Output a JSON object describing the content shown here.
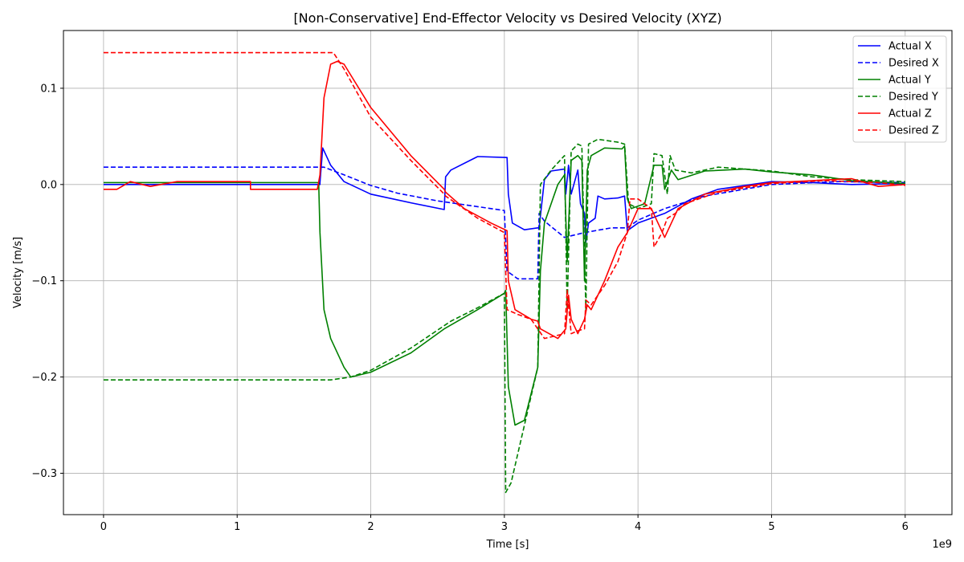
{
  "chart_data": {
    "type": "line",
    "title": "[Non-Conservative] End-Effector Velocity vs Desired Velocity (XYZ)",
    "xlabel": "Time [s]",
    "ylabel": "Velocity [m/s]",
    "x_offset_label": "1e9",
    "xlim": [
      -0.3,
      6.35
    ],
    "ylim": [
      -0.343,
      0.16
    ],
    "x_ticks": [
      0,
      1,
      2,
      3,
      4,
      5,
      6
    ],
    "x_tick_labels": [
      "0",
      "1",
      "2",
      "3",
      "4",
      "5",
      "6"
    ],
    "y_ticks": [
      -0.3,
      -0.2,
      -0.1,
      0.0,
      0.1
    ],
    "y_tick_labels": [
      "−0.3",
      "−0.2",
      "−0.1",
      "0.0",
      "0.1"
    ],
    "grid": true,
    "legend_position": "top-right",
    "series": [
      {
        "name": "Actual X",
        "color": "#0000ff",
        "dash": "solid",
        "points": [
          [
            0,
            0
          ],
          [
            1.62,
            0
          ],
          [
            1.62,
            0.002
          ],
          [
            1.64,
            0.038
          ],
          [
            1.7,
            0.02
          ],
          [
            1.8,
            0.003
          ],
          [
            2.0,
            -0.01
          ],
          [
            2.3,
            -0.019
          ],
          [
            2.55,
            -0.026
          ],
          [
            2.56,
            0.008
          ],
          [
            2.6,
            0.015
          ],
          [
            2.8,
            0.029
          ],
          [
            3.02,
            0.028
          ],
          [
            3.03,
            -0.01
          ],
          [
            3.06,
            -0.04
          ],
          [
            3.15,
            -0.047
          ],
          [
            3.25,
            -0.045
          ],
          [
            3.26,
            -0.045
          ],
          [
            3.3,
            0.005
          ],
          [
            3.35,
            0.014
          ],
          [
            3.45,
            0.016
          ],
          [
            3.46,
            -0.01
          ],
          [
            3.48,
            0.02
          ],
          [
            3.5,
            -0.01
          ],
          [
            3.55,
            0.015
          ],
          [
            3.57,
            -0.02
          ],
          [
            3.6,
            -0.03
          ],
          [
            3.61,
            -0.06
          ],
          [
            3.63,
            -0.04
          ],
          [
            3.68,
            -0.035
          ],
          [
            3.7,
            -0.012
          ],
          [
            3.75,
            -0.015
          ],
          [
            3.85,
            -0.014
          ],
          [
            3.9,
            -0.012
          ],
          [
            3.92,
            -0.048
          ],
          [
            4.0,
            -0.04
          ],
          [
            4.2,
            -0.03
          ],
          [
            4.4,
            -0.015
          ],
          [
            4.6,
            -0.005
          ],
          [
            5.0,
            0.003
          ],
          [
            5.3,
            0.002
          ],
          [
            5.6,
            0.0
          ],
          [
            6.0,
            0.001
          ]
        ]
      },
      {
        "name": "Desired X",
        "color": "#0000ff",
        "dash": "dashed",
        "points": [
          [
            0,
            0.018
          ],
          [
            1.65,
            0.018
          ],
          [
            1.8,
            0.01
          ],
          [
            2.0,
            -0.001
          ],
          [
            2.2,
            -0.009
          ],
          [
            2.5,
            -0.017
          ],
          [
            2.8,
            -0.023
          ],
          [
            3.0,
            -0.027
          ],
          [
            3.02,
            -0.09
          ],
          [
            3.1,
            -0.098
          ],
          [
            3.25,
            -0.098
          ],
          [
            3.26,
            -0.03
          ],
          [
            3.3,
            -0.038
          ],
          [
            3.45,
            -0.055
          ],
          [
            3.6,
            -0.05
          ],
          [
            3.8,
            -0.045
          ],
          [
            3.92,
            -0.045
          ],
          [
            4.0,
            -0.037
          ],
          [
            4.2,
            -0.025
          ],
          [
            4.5,
            -0.012
          ],
          [
            5.0,
            0.0
          ],
          [
            5.5,
            0.003
          ],
          [
            6.0,
            0.002
          ]
        ]
      },
      {
        "name": "Actual Y",
        "color": "#008000",
        "dash": "solid",
        "points": [
          [
            0,
            0.002
          ],
          [
            1.61,
            0.002
          ],
          [
            1.62,
            -0.05
          ],
          [
            1.65,
            -0.13
          ],
          [
            1.7,
            -0.16
          ],
          [
            1.8,
            -0.19
          ],
          [
            1.85,
            -0.2
          ],
          [
            2.0,
            -0.195
          ],
          [
            2.3,
            -0.175
          ],
          [
            2.55,
            -0.15
          ],
          [
            2.8,
            -0.13
          ],
          [
            3.0,
            -0.113
          ],
          [
            3.01,
            -0.11
          ],
          [
            3.03,
            -0.21
          ],
          [
            3.08,
            -0.25
          ],
          [
            3.15,
            -0.245
          ],
          [
            3.25,
            -0.19
          ],
          [
            3.27,
            -0.09
          ],
          [
            3.3,
            -0.04
          ],
          [
            3.4,
            0.0
          ],
          [
            3.45,
            0.01
          ],
          [
            3.47,
            -0.08
          ],
          [
            3.5,
            0.025
          ],
          [
            3.55,
            0.03
          ],
          [
            3.58,
            0.025
          ],
          [
            3.6,
            -0.1
          ],
          [
            3.62,
            0.015
          ],
          [
            3.65,
            0.03
          ],
          [
            3.75,
            0.038
          ],
          [
            3.88,
            0.037
          ],
          [
            3.9,
            0.04
          ],
          [
            3.92,
            -0.015
          ],
          [
            3.95,
            -0.025
          ],
          [
            4.05,
            -0.02
          ],
          [
            4.12,
            0.02
          ],
          [
            4.18,
            0.02
          ],
          [
            4.2,
            -0.005
          ],
          [
            4.25,
            0.015
          ],
          [
            4.3,
            0.005
          ],
          [
            4.5,
            0.014
          ],
          [
            4.8,
            0.016
          ],
          [
            5.0,
            0.013
          ],
          [
            5.3,
            0.01
          ],
          [
            5.6,
            0.004
          ],
          [
            6.0,
            0.001
          ]
        ]
      },
      {
        "name": "Desired Y",
        "color": "#008000",
        "dash": "dashed",
        "points": [
          [
            0,
            -0.203
          ],
          [
            1.7,
            -0.203
          ],
          [
            1.85,
            -0.2
          ],
          [
            2.0,
            -0.193
          ],
          [
            2.3,
            -0.17
          ],
          [
            2.6,
            -0.142
          ],
          [
            2.8,
            -0.128
          ],
          [
            3.0,
            -0.113
          ],
          [
            3.01,
            -0.32
          ],
          [
            3.05,
            -0.31
          ],
          [
            3.15,
            -0.25
          ],
          [
            3.25,
            -0.19
          ],
          [
            3.27,
            0.0
          ],
          [
            3.35,
            0.015
          ],
          [
            3.45,
            0.03
          ],
          [
            3.47,
            -0.13
          ],
          [
            3.5,
            0.035
          ],
          [
            3.55,
            0.042
          ],
          [
            3.58,
            0.04
          ],
          [
            3.61,
            -0.13
          ],
          [
            3.63,
            0.042
          ],
          [
            3.7,
            0.047
          ],
          [
            3.85,
            0.044
          ],
          [
            3.9,
            0.042
          ],
          [
            3.93,
            -0.02
          ],
          [
            4.0,
            -0.025
          ],
          [
            4.1,
            -0.02
          ],
          [
            4.12,
            0.032
          ],
          [
            4.18,
            0.03
          ],
          [
            4.22,
            -0.01
          ],
          [
            4.24,
            0.03
          ],
          [
            4.28,
            0.015
          ],
          [
            4.4,
            0.012
          ],
          [
            4.6,
            0.018
          ],
          [
            5.0,
            0.014
          ],
          [
            5.3,
            0.008
          ],
          [
            5.6,
            0.005
          ],
          [
            6.0,
            0.003
          ]
        ]
      },
      {
        "name": "Actual Z",
        "color": "#ff0000",
        "dash": "solid",
        "points": [
          [
            0,
            -0.005
          ],
          [
            0.1,
            -0.005
          ],
          [
            0.2,
            0.003
          ],
          [
            0.35,
            -0.002
          ],
          [
            0.55,
            0.003
          ],
          [
            1.1,
            0.003
          ],
          [
            1.1,
            -0.005
          ],
          [
            1.6,
            -0.005
          ],
          [
            1.62,
            0.01
          ],
          [
            1.65,
            0.09
          ],
          [
            1.7,
            0.125
          ],
          [
            1.75,
            0.128
          ],
          [
            1.8,
            0.125
          ],
          [
            2.0,
            0.08
          ],
          [
            2.3,
            0.03
          ],
          [
            2.55,
            -0.005
          ],
          [
            2.56,
            -0.008
          ],
          [
            2.7,
            -0.025
          ],
          [
            2.9,
            -0.04
          ],
          [
            3.02,
            -0.048
          ],
          [
            3.03,
            -0.1
          ],
          [
            3.08,
            -0.13
          ],
          [
            3.2,
            -0.14
          ],
          [
            3.25,
            -0.142
          ],
          [
            3.27,
            -0.15
          ],
          [
            3.4,
            -0.16
          ],
          [
            3.46,
            -0.15
          ],
          [
            3.48,
            -0.115
          ],
          [
            3.5,
            -0.14
          ],
          [
            3.55,
            -0.155
          ],
          [
            3.6,
            -0.14
          ],
          [
            3.62,
            -0.125
          ],
          [
            3.65,
            -0.13
          ],
          [
            3.75,
            -0.1
          ],
          [
            3.85,
            -0.065
          ],
          [
            3.92,
            -0.05
          ],
          [
            4.0,
            -0.025
          ],
          [
            4.1,
            -0.025
          ],
          [
            4.15,
            -0.04
          ],
          [
            4.2,
            -0.055
          ],
          [
            4.25,
            -0.04
          ],
          [
            4.3,
            -0.025
          ],
          [
            4.5,
            -0.01
          ],
          [
            4.8,
            -0.002
          ],
          [
            5.0,
            0.002
          ],
          [
            5.3,
            0.004
          ],
          [
            5.6,
            0.006
          ],
          [
            5.8,
            -0.002
          ],
          [
            6.0,
            0.0
          ]
        ]
      },
      {
        "name": "Desired Z",
        "color": "#ff0000",
        "dash": "dashed",
        "points": [
          [
            0,
            0.137
          ],
          [
            1.72,
            0.137
          ],
          [
            1.8,
            0.12
          ],
          [
            2.0,
            0.07
          ],
          [
            2.3,
            0.025
          ],
          [
            2.55,
            -0.01
          ],
          [
            2.56,
            -0.012
          ],
          [
            2.8,
            -0.035
          ],
          [
            3.0,
            -0.05
          ],
          [
            3.02,
            -0.13
          ],
          [
            3.1,
            -0.135
          ],
          [
            3.2,
            -0.14
          ],
          [
            3.3,
            -0.16
          ],
          [
            3.45,
            -0.155
          ],
          [
            3.47,
            -0.11
          ],
          [
            3.5,
            -0.155
          ],
          [
            3.55,
            -0.152
          ],
          [
            3.6,
            -0.15
          ],
          [
            3.61,
            -0.12
          ],
          [
            3.65,
            -0.125
          ],
          [
            3.75,
            -0.105
          ],
          [
            3.85,
            -0.08
          ],
          [
            3.92,
            -0.05
          ],
          [
            3.94,
            -0.015
          ],
          [
            4.0,
            -0.015
          ],
          [
            4.1,
            -0.025
          ],
          [
            4.12,
            -0.065
          ],
          [
            4.18,
            -0.05
          ],
          [
            4.22,
            -0.035
          ],
          [
            4.28,
            -0.03
          ],
          [
            4.35,
            -0.02
          ],
          [
            4.6,
            -0.008
          ],
          [
            5.0,
            0.001
          ],
          [
            5.4,
            0.004
          ],
          [
            5.8,
            0.002
          ],
          [
            6.0,
            -0.001
          ]
        ]
      }
    ]
  }
}
